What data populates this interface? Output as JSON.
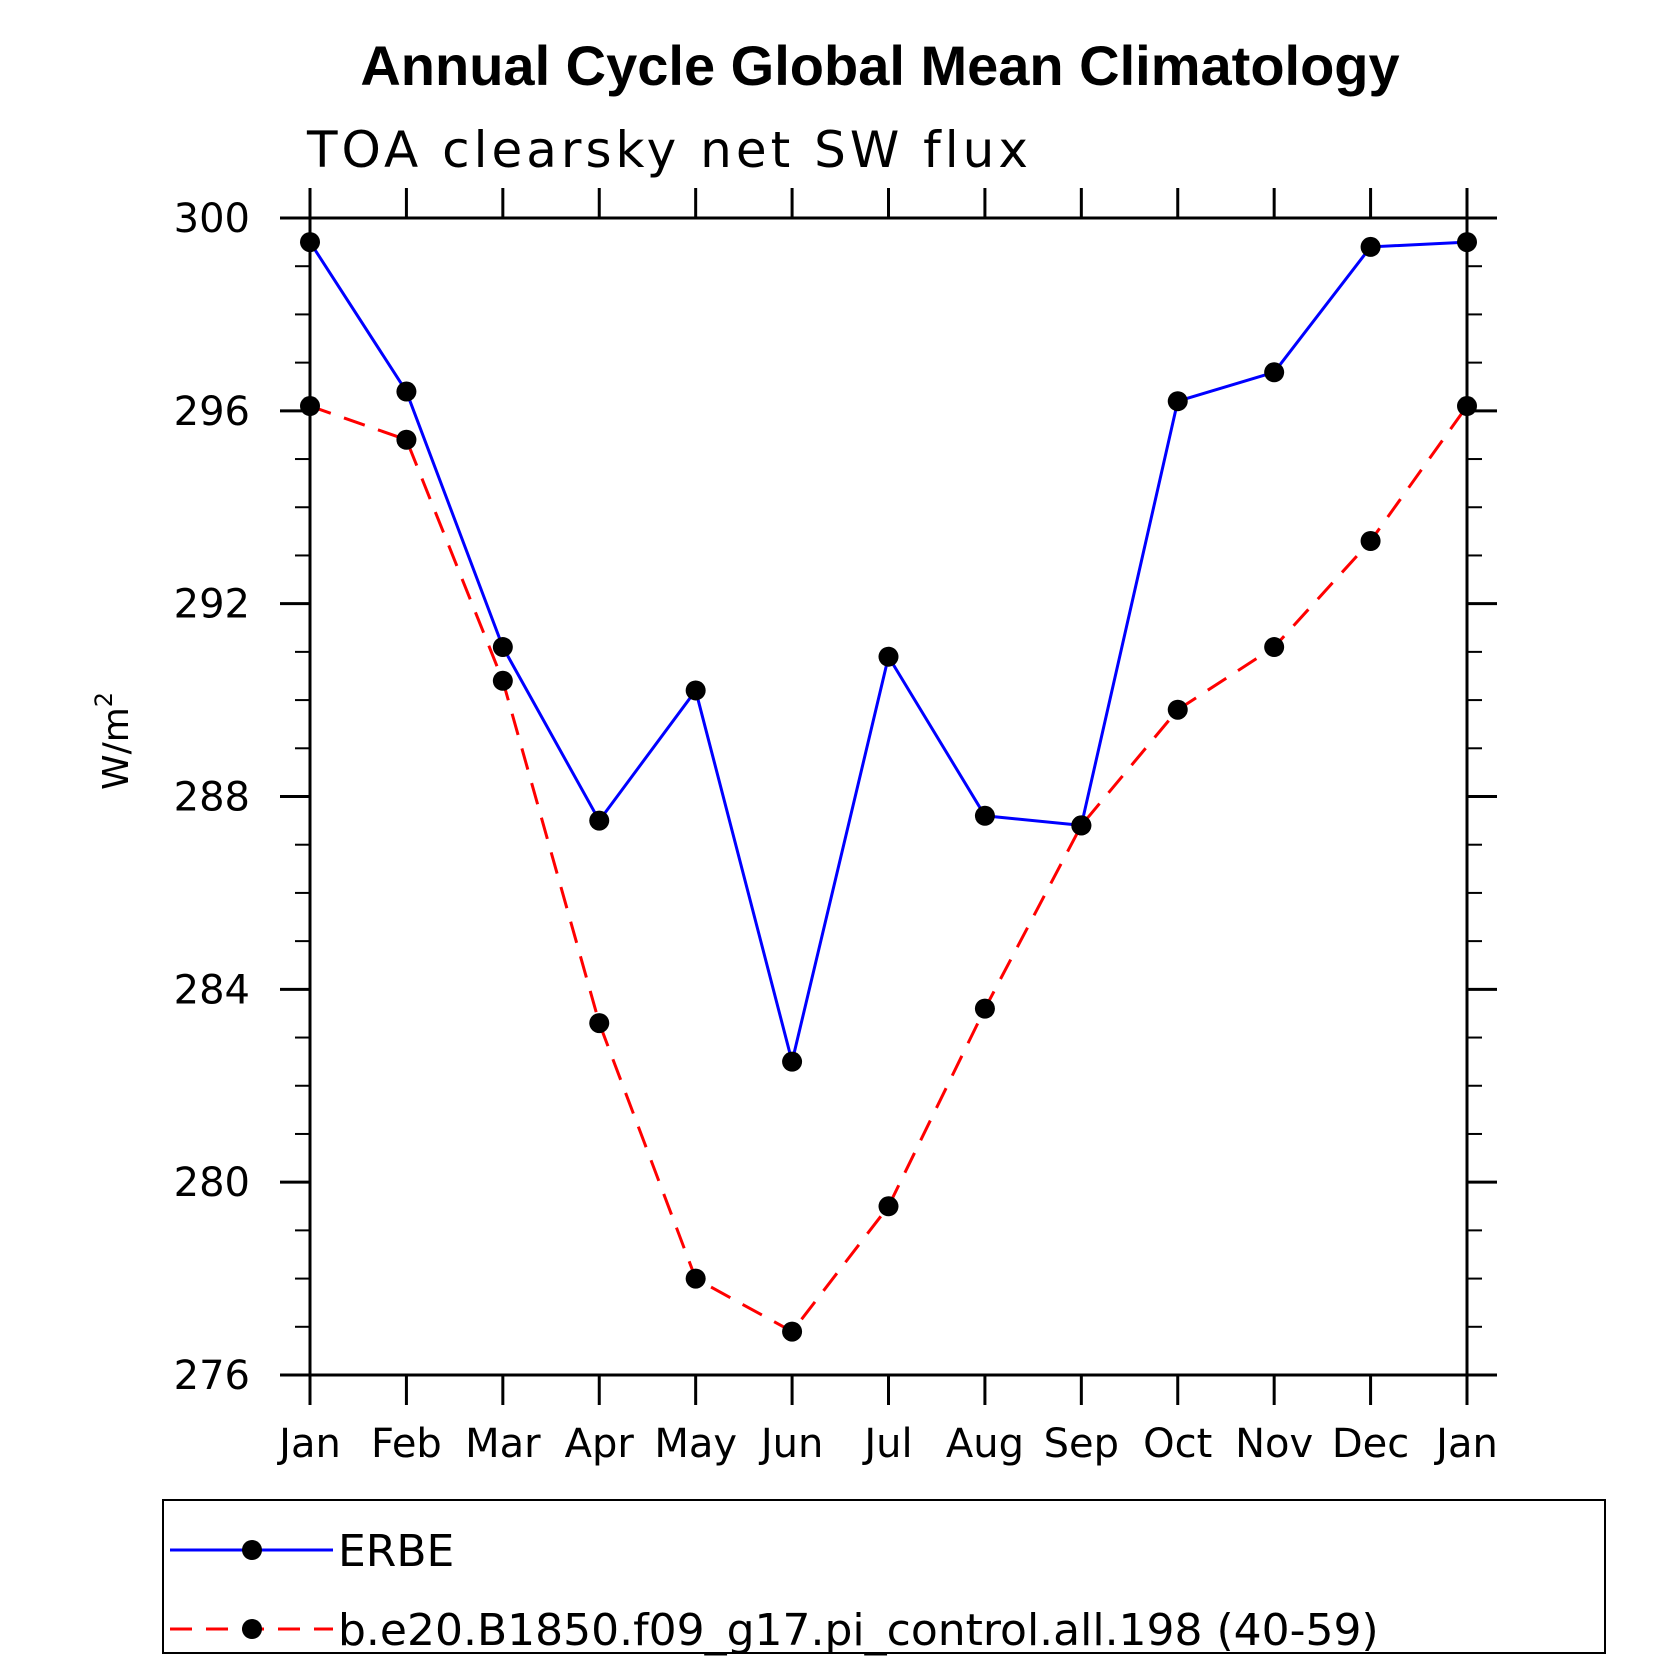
{
  "chart_data": {
    "type": "line",
    "title": "Annual Cycle Global Mean Climatology",
    "subtitle": "TOA clearsky net SW flux",
    "ylabel_base": "W/m",
    "ylabel_sup": "2",
    "xlabel": "",
    "categories": [
      "Jan",
      "Feb",
      "Mar",
      "Apr",
      "May",
      "Jun",
      "Jul",
      "Aug",
      "Sep",
      "Oct",
      "Nov",
      "Dec",
      "Jan"
    ],
    "ylim": [
      276,
      300
    ],
    "yticks": [
      276,
      280,
      284,
      288,
      292,
      296,
      300
    ],
    "yticks_minor_step": 1,
    "legend_position": "bottom",
    "series": [
      {
        "name": "ERBE",
        "color": "#0000ff",
        "line_style": "solid",
        "values": [
          299.5,
          296.4,
          291.1,
          287.5,
          290.2,
          282.5,
          290.9,
          287.6,
          287.4,
          296.2,
          296.8,
          299.4,
          299.5
        ]
      },
      {
        "name": "b.e20.B1850.f09_g17.pi_control.all.198 (40-59)",
        "color": "#ff0000",
        "line_style": "dashed",
        "values": [
          296.1,
          295.4,
          290.4,
          283.3,
          278.0,
          276.9,
          279.5,
          283.6,
          287.4,
          289.8,
          291.1,
          293.3,
          296.1
        ]
      }
    ]
  }
}
